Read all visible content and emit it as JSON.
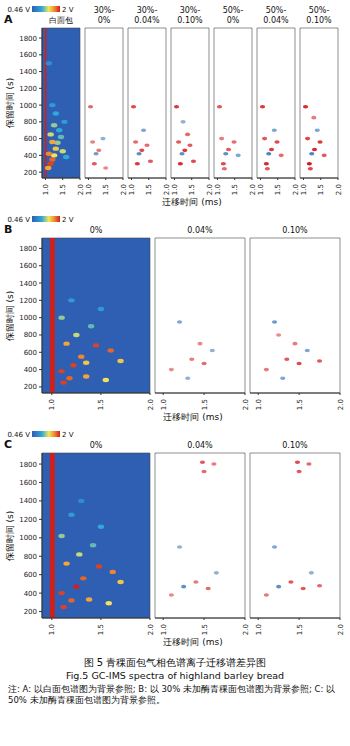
{
  "chart_data": [
    {
      "type": "heatmap",
      "label": "A",
      "x_label": "迁移时间 (ms)",
      "y_label": "保留时间 (s)",
      "xlim": [
        0.9,
        2.0
      ],
      "xticks": [
        {
          "value": 1,
          "label": "1.0"
        },
        {
          "value": 1.5,
          "label": "1.5"
        },
        {
          "value": 2,
          "label": "2.0"
        }
      ],
      "ylim": [
        130,
        1920
      ],
      "yticks": [
        200,
        400,
        600,
        800,
        1000,
        1200,
        1400,
        1600,
        1800
      ],
      "colorbar_range": [
        0.46,
        2
      ],
      "colorbar_ticks": [
        {
          "value": 0.46,
          "label": "0.46 V"
        },
        {
          "value": 2,
          "label": "2 V"
        }
      ],
      "subplots": [
        {
          "title": "白面包",
          "type": "heatmap",
          "rip": {
            "x": [
              0.98,
              1.03
            ],
            "value": 2
          },
          "cells": [
            [
              1.08,
              250,
              1.6
            ],
            [
              1.15,
              300,
              1.9
            ],
            [
              1.2,
              350,
              1.8
            ],
            [
              1.25,
              400,
              1.4
            ],
            [
              1.1,
              420,
              1.7
            ],
            [
              1.3,
              480,
              1.5
            ],
            [
              1.35,
              550,
              1.2
            ],
            [
              1.2,
              560,
              1.6
            ],
            [
              1.45,
              620,
              1.1
            ],
            [
              1.15,
              650,
              1.3
            ],
            [
              1.4,
              700,
              1.0
            ],
            [
              1.25,
              760,
              1.2
            ],
            [
              1.55,
              800,
              0.9
            ],
            [
              1.3,
              900,
              1.0
            ],
            [
              1.2,
              1000,
              0.9
            ],
            [
              1.1,
              1500,
              0.8
            ],
            [
              1.5,
              450,
              1.3
            ],
            [
              1.6,
              380,
              1.0
            ]
          ]
        },
        {
          "title": "30%-0%",
          "type": "difference",
          "cells": [
            [
              1.06,
              980,
              0.5
            ],
            [
              1.17,
              300,
              0.6
            ],
            [
              1.22,
              420,
              -0.5
            ],
            [
              1.3,
              460,
              0.4
            ],
            [
              1.42,
              600,
              -0.3
            ],
            [
              1.12,
              560,
              0.35
            ],
            [
              1.5,
              250,
              0.3
            ]
          ]
        },
        {
          "title": "30%-0.04%",
          "type": "difference",
          "cells": [
            [
              1.06,
              980,
              0.7
            ],
            [
              1.17,
              300,
              0.8
            ],
            [
              1.22,
              420,
              -0.6
            ],
            [
              1.3,
              460,
              0.7
            ],
            [
              1.45,
              520,
              0.5
            ],
            [
              1.12,
              560,
              0.5
            ],
            [
              1.35,
              700,
              -0.4
            ],
            [
              1.55,
              330,
              0.6
            ]
          ]
        },
        {
          "title": "30%-0.10%",
          "type": "difference",
          "cells": [
            [
              1.06,
              980,
              0.8
            ],
            [
              1.17,
              300,
              0.9
            ],
            [
              1.22,
              420,
              -0.6
            ],
            [
              1.3,
              460,
              0.8
            ],
            [
              1.45,
              520,
              0.6
            ],
            [
              1.12,
              560,
              0.6
            ],
            [
              1.38,
              650,
              0.5
            ],
            [
              1.55,
              330,
              0.7
            ],
            [
              1.25,
              800,
              -0.3
            ]
          ]
        },
        {
          "title": "50%-0%",
          "type": "difference",
          "cells": [
            [
              1.06,
              980,
              0.6
            ],
            [
              1.17,
              300,
              0.7
            ],
            [
              1.24,
              420,
              -0.6
            ],
            [
              1.32,
              470,
              0.6
            ],
            [
              1.48,
              560,
              0.5
            ],
            [
              1.12,
              600,
              0.4
            ],
            [
              1.6,
              400,
              -0.4
            ],
            [
              1.2,
              240,
              0.5
            ]
          ]
        },
        {
          "title": "50%-0.04%",
          "type": "difference",
          "cells": [
            [
              1.06,
              980,
              0.8
            ],
            [
              1.17,
              300,
              0.9
            ],
            [
              1.24,
              420,
              -0.7
            ],
            [
              1.32,
              470,
              0.8
            ],
            [
              1.48,
              560,
              0.7
            ],
            [
              1.12,
              600,
              0.6
            ],
            [
              1.6,
              400,
              0.5
            ],
            [
              1.4,
              700,
              -0.4
            ],
            [
              1.2,
              240,
              0.6
            ]
          ]
        },
        {
          "title": "50%-0.10%",
          "type": "difference",
          "cells": [
            [
              1.06,
              980,
              0.9
            ],
            [
              1.17,
              300,
              1.0
            ],
            [
              1.24,
              420,
              -0.7
            ],
            [
              1.32,
              470,
              0.9
            ],
            [
              1.48,
              560,
              0.8
            ],
            [
              1.12,
              600,
              0.7
            ],
            [
              1.6,
              400,
              0.6
            ],
            [
              1.4,
              700,
              -0.4
            ],
            [
              1.2,
              240,
              0.7
            ],
            [
              1.3,
              850,
              0.4
            ]
          ]
        }
      ]
    },
    {
      "type": "heatmap",
      "label": "B",
      "x_label": "迁移时间 (ms)",
      "y_label": "保留时间 (s)",
      "xlim": [
        0.9,
        2.0
      ],
      "xticks": [
        {
          "value": 1,
          "label": "1.0"
        },
        {
          "value": 1.5,
          "label": "1.5"
        },
        {
          "value": 2,
          "label": "2.0"
        }
      ],
      "ylim": [
        130,
        1920
      ],
      "yticks": [
        200,
        400,
        600,
        800,
        1000,
        1200,
        1400,
        1600,
        1800
      ],
      "colorbar_range": [
        0.46,
        2
      ],
      "colorbar_ticks": [
        {
          "value": 0.46,
          "label": "0.46 V"
        },
        {
          "value": 2,
          "label": "2 V"
        }
      ],
      "subplots": [
        {
          "title": "0%",
          "type": "heatmap",
          "rip": {
            "x": [
              0.98,
              1.03
            ],
            "value": 2
          },
          "cells": [
            [
              1.12,
              250,
              1.9
            ],
            [
              1.18,
              300,
              1.8
            ],
            [
              1.1,
              380,
              1.9
            ],
            [
              1.22,
              450,
              1.9
            ],
            [
              1.3,
              550,
              1.7
            ],
            [
              1.45,
              680,
              1.9
            ],
            [
              1.6,
              620,
              1.8
            ],
            [
              1.7,
              500,
              1.5
            ],
            [
              1.35,
              320,
              1.6
            ],
            [
              1.55,
              280,
              1.4
            ],
            [
              1.25,
              800,
              1.3
            ],
            [
              1.4,
              900,
              1.1
            ],
            [
              1.1,
              1000,
              1.2
            ],
            [
              1.5,
              1100,
              0.9
            ],
            [
              1.2,
              1200,
              0.9
            ],
            [
              1.15,
              700,
              1.6
            ],
            [
              1.35,
              480,
              1.5
            ]
          ]
        },
        {
          "title": "0.04%",
          "type": "difference",
          "cells": [
            [
              1.2,
              950,
              -0.4
            ],
            [
              1.35,
              520,
              0.4
            ],
            [
              1.5,
              470,
              0.5
            ],
            [
              1.6,
              620,
              -0.3
            ],
            [
              1.1,
              400,
              0.3
            ],
            [
              1.3,
              300,
              -0.3
            ],
            [
              1.45,
              700,
              0.3
            ]
          ]
        },
        {
          "title": "0.10%",
          "type": "difference",
          "cells": [
            [
              1.2,
              950,
              -0.5
            ],
            [
              1.35,
              520,
              0.6
            ],
            [
              1.5,
              470,
              0.7
            ],
            [
              1.75,
              500,
              0.6
            ],
            [
              1.6,
              620,
              -0.4
            ],
            [
              1.1,
              400,
              0.4
            ],
            [
              1.3,
              300,
              -0.4
            ],
            [
              1.45,
              700,
              0.4
            ],
            [
              1.25,
              800,
              0.3
            ]
          ]
        }
      ]
    },
    {
      "type": "heatmap",
      "label": "C",
      "x_label": "迁移时间 (ms)",
      "y_label": "保留时间 (s)",
      "xlim": [
        0.9,
        2.0
      ],
      "xticks": [
        {
          "value": 1,
          "label": "1.0"
        },
        {
          "value": 1.5,
          "label": "1.5"
        },
        {
          "value": 2,
          "label": "2.0"
        }
      ],
      "ylim": [
        130,
        1920
      ],
      "yticks": [
        200,
        400,
        600,
        800,
        1000,
        1200,
        1400,
        1600,
        1800
      ],
      "colorbar_range": [
        0.46,
        2
      ],
      "colorbar_ticks": [
        {
          "value": 0.46,
          "label": "0.46 V"
        },
        {
          "value": 2,
          "label": "2 V"
        }
      ],
      "subplots": [
        {
          "title": "0%",
          "type": "heatmap",
          "rip": {
            "x": [
              0.98,
              1.03
            ],
            "value": 2
          },
          "cells": [
            [
              1.12,
              250,
              1.9
            ],
            [
              1.2,
              320,
              1.8
            ],
            [
              1.1,
              400,
              1.9
            ],
            [
              1.25,
              470,
              2.0
            ],
            [
              1.32,
              560,
              1.8
            ],
            [
              1.48,
              690,
              1.9
            ],
            [
              1.62,
              630,
              1.7
            ],
            [
              1.7,
              520,
              1.5
            ],
            [
              1.38,
              330,
              1.6
            ],
            [
              1.58,
              290,
              1.4
            ],
            [
              1.28,
              820,
              1.3
            ],
            [
              1.42,
              920,
              1.1
            ],
            [
              1.1,
              1020,
              1.2
            ],
            [
              1.5,
              1120,
              1.0
            ],
            [
              1.2,
              1250,
              0.9
            ],
            [
              1.15,
              720,
              1.6
            ],
            [
              1.3,
              1400,
              0.8
            ]
          ]
        },
        {
          "title": "0.04%",
          "type": "difference",
          "cells": [
            [
              1.48,
              1820,
              0.6
            ],
            [
              1.5,
              1720,
              0.5
            ],
            [
              1.62,
              1800,
              0.4
            ],
            [
              1.25,
              470,
              -0.6
            ],
            [
              1.4,
              520,
              0.4
            ],
            [
              1.55,
              450,
              0.5
            ],
            [
              1.2,
              900,
              -0.3
            ],
            [
              1.1,
              380,
              0.3
            ],
            [
              1.65,
              620,
              -0.3
            ]
          ]
        },
        {
          "title": "0.10%",
          "type": "difference",
          "cells": [
            [
              1.48,
              1820,
              0.7
            ],
            [
              1.5,
              1720,
              0.6
            ],
            [
              1.62,
              1800,
              0.5
            ],
            [
              1.25,
              470,
              -0.6
            ],
            [
              1.4,
              520,
              0.6
            ],
            [
              1.55,
              450,
              0.6
            ],
            [
              1.75,
              480,
              0.5
            ],
            [
              1.2,
              900,
              -0.4
            ],
            [
              1.1,
              380,
              0.4
            ],
            [
              1.65,
              620,
              -0.3
            ]
          ]
        }
      ]
    }
  ],
  "caption": {
    "title": "图 5 青稞面包气相色谱离子迁移谱差异图",
    "title_en": "Fig.5 GC-IMS spectra of highland barley bread",
    "note": "注: A: 以白面包谱图为背景参照; B: 以 30% 未加酶青稞面包谱图为背景参照; C: 以 50% 未加酶青稞面包谱图为背景参照。"
  }
}
